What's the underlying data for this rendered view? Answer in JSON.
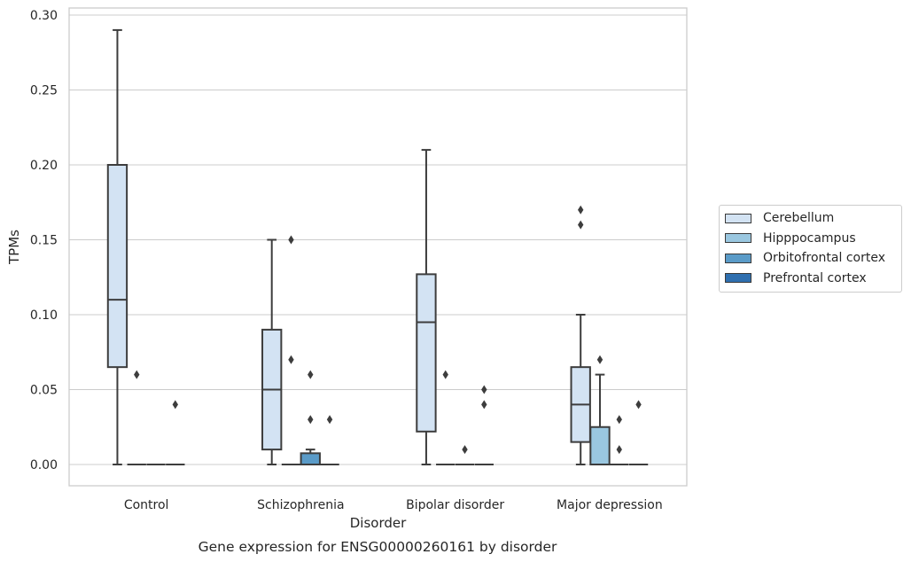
{
  "chart_data": {
    "type": "box",
    "title": "",
    "caption": "Gene expression for ENSG00000260161 by disorder",
    "xlabel": "Disorder",
    "ylabel": "TPMs",
    "ylim": [
      -0.014,
      0.305
    ],
    "yticks": [
      "0.00",
      "0.05",
      "0.10",
      "0.15",
      "0.20",
      "0.25",
      "0.30"
    ],
    "categories": [
      "Control",
      "Schizophrenia",
      "Bipolar disorder",
      "Major depression"
    ],
    "grid": "horizontal",
    "legend_position": "right",
    "series": [
      {
        "name": "Cerebellum",
        "color": "#d3e3f3",
        "boxes": [
          {
            "whisker_low": 0.0,
            "q1": 0.065,
            "median": 0.11,
            "q3": 0.2,
            "whisker_high": 0.29,
            "outliers": []
          },
          {
            "whisker_low": 0.0,
            "q1": 0.01,
            "median": 0.05,
            "q3": 0.09,
            "whisker_high": 0.15,
            "outliers": []
          },
          {
            "whisker_low": 0.0,
            "q1": 0.022,
            "median": 0.095,
            "q3": 0.127,
            "whisker_high": 0.21,
            "outliers": []
          },
          {
            "whisker_low": 0.0,
            "q1": 0.015,
            "median": 0.04,
            "q3": 0.065,
            "whisker_high": 0.1,
            "outliers": [
              0.16,
              0.17
            ]
          }
        ]
      },
      {
        "name": "Hipppocampus",
        "color": "#9ac7e0",
        "boxes": [
          {
            "whisker_low": 0.0,
            "q1": 0.0,
            "median": 0.0,
            "q3": 0.0,
            "whisker_high": 0.0,
            "outliers": [
              0.06
            ]
          },
          {
            "whisker_low": 0.0,
            "q1": 0.0,
            "median": 0.0,
            "q3": 0.0,
            "whisker_high": 0.0,
            "outliers": [
              0.15,
              0.07
            ]
          },
          {
            "whisker_low": 0.0,
            "q1": 0.0,
            "median": 0.0,
            "q3": 0.0,
            "whisker_high": 0.0,
            "outliers": [
              0.06
            ]
          },
          {
            "whisker_low": 0.0,
            "q1": 0.0,
            "median": 0.0,
            "q3": 0.025,
            "whisker_high": 0.06,
            "outliers": [
              0.07
            ]
          }
        ]
      },
      {
        "name": "Orbitofrontal cortex",
        "color": "#5a9bc8",
        "boxes": [
          {
            "whisker_low": 0.0,
            "q1": 0.0,
            "median": 0.0,
            "q3": 0.0,
            "whisker_high": 0.0,
            "outliers": []
          },
          {
            "whisker_low": 0.0,
            "q1": 0.0,
            "median": 0.0,
            "q3": 0.0075,
            "whisker_high": 0.01,
            "outliers": [
              0.06,
              0.03
            ]
          },
          {
            "whisker_low": 0.0,
            "q1": 0.0,
            "median": 0.0,
            "q3": 0.0,
            "whisker_high": 0.0,
            "outliers": [
              0.01
            ]
          },
          {
            "whisker_low": 0.0,
            "q1": 0.0,
            "median": 0.0,
            "q3": 0.0,
            "whisker_high": 0.0,
            "outliers": [
              0.03,
              0.01
            ]
          }
        ]
      },
      {
        "name": "Prefrontal cortex",
        "color": "#2f6faf",
        "boxes": [
          {
            "whisker_low": 0.0,
            "q1": 0.0,
            "median": 0.0,
            "q3": 0.0,
            "whisker_high": 0.0,
            "outliers": [
              0.04
            ]
          },
          {
            "whisker_low": 0.0,
            "q1": 0.0,
            "median": 0.0,
            "q3": 0.0,
            "whisker_high": 0.0,
            "outliers": [
              0.03
            ]
          },
          {
            "whisker_low": 0.0,
            "q1": 0.0,
            "median": 0.0,
            "q3": 0.0,
            "whisker_high": 0.0,
            "outliers": [
              0.05,
              0.04
            ]
          },
          {
            "whisker_low": 0.0,
            "q1": 0.0,
            "median": 0.0,
            "q3": 0.0,
            "whisker_high": 0.0,
            "outliers": [
              0.04
            ]
          }
        ]
      }
    ]
  }
}
